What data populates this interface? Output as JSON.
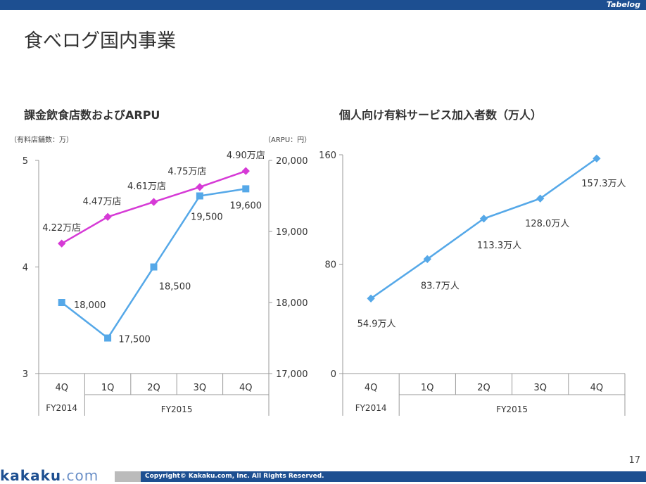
{
  "header": {
    "brand": "Tabelog",
    "title": "食べログ国内事業"
  },
  "footer": {
    "logo_main": "kakaku",
    "logo_suffix": ".com",
    "copyright": "Copyright© Kakaku.com, Inc. All Rights Reserved.",
    "page": "17"
  },
  "colors": {
    "bar": "#1d4f91",
    "pink": "#d63ad6",
    "blue": "#55a8e8"
  },
  "chart_data": [
    {
      "type": "line",
      "title": "課金飲食店数およびARPU",
      "ylabel_left": "（有料店舗数：万）",
      "ylabel_right": "（ARPU：円）",
      "categories": [
        "4Q",
        "1Q",
        "2Q",
        "3Q",
        "4Q"
      ],
      "groups": [
        "FY2014",
        "FY2015"
      ],
      "yticks_left": [
        "5",
        "4",
        "3"
      ],
      "ylim_left": [
        3,
        5
      ],
      "yticks_right": [
        "20,000",
        "19,000",
        "18,000",
        "17,000"
      ],
      "ylim_right": [
        17000,
        20000
      ],
      "series": [
        {
          "name": "有料店舗数",
          "axis": "left",
          "values": [
            4.22,
            4.47,
            4.61,
            4.75,
            4.9
          ],
          "labels": [
            "4.22万店",
            "4.47万店",
            "4.61万店",
            "4.75万店",
            "4.90万店"
          ]
        },
        {
          "name": "ARPU",
          "axis": "right",
          "values": [
            18000,
            17500,
            18500,
            19500,
            19600
          ],
          "labels": [
            "18,000",
            "17,500",
            "18,500",
            "19,500",
            "19,600"
          ]
        }
      ]
    },
    {
      "type": "line",
      "title": "個人向け有料サービス加入者数（万人）",
      "categories": [
        "4Q",
        "1Q",
        "2Q",
        "3Q",
        "4Q"
      ],
      "groups": [
        "FY2014",
        "FY2015"
      ],
      "yticks": [
        "160",
        "80",
        "0"
      ],
      "ylim": [
        0,
        160
      ],
      "series": [
        {
          "name": "加入者数",
          "values": [
            54.9,
            83.7,
            113.3,
            128.0,
            157.3
          ],
          "labels": [
            "54.9万人",
            "83.7万人",
            "113.3万人",
            "128.0万人",
            "157.3万人"
          ]
        }
      ]
    }
  ]
}
